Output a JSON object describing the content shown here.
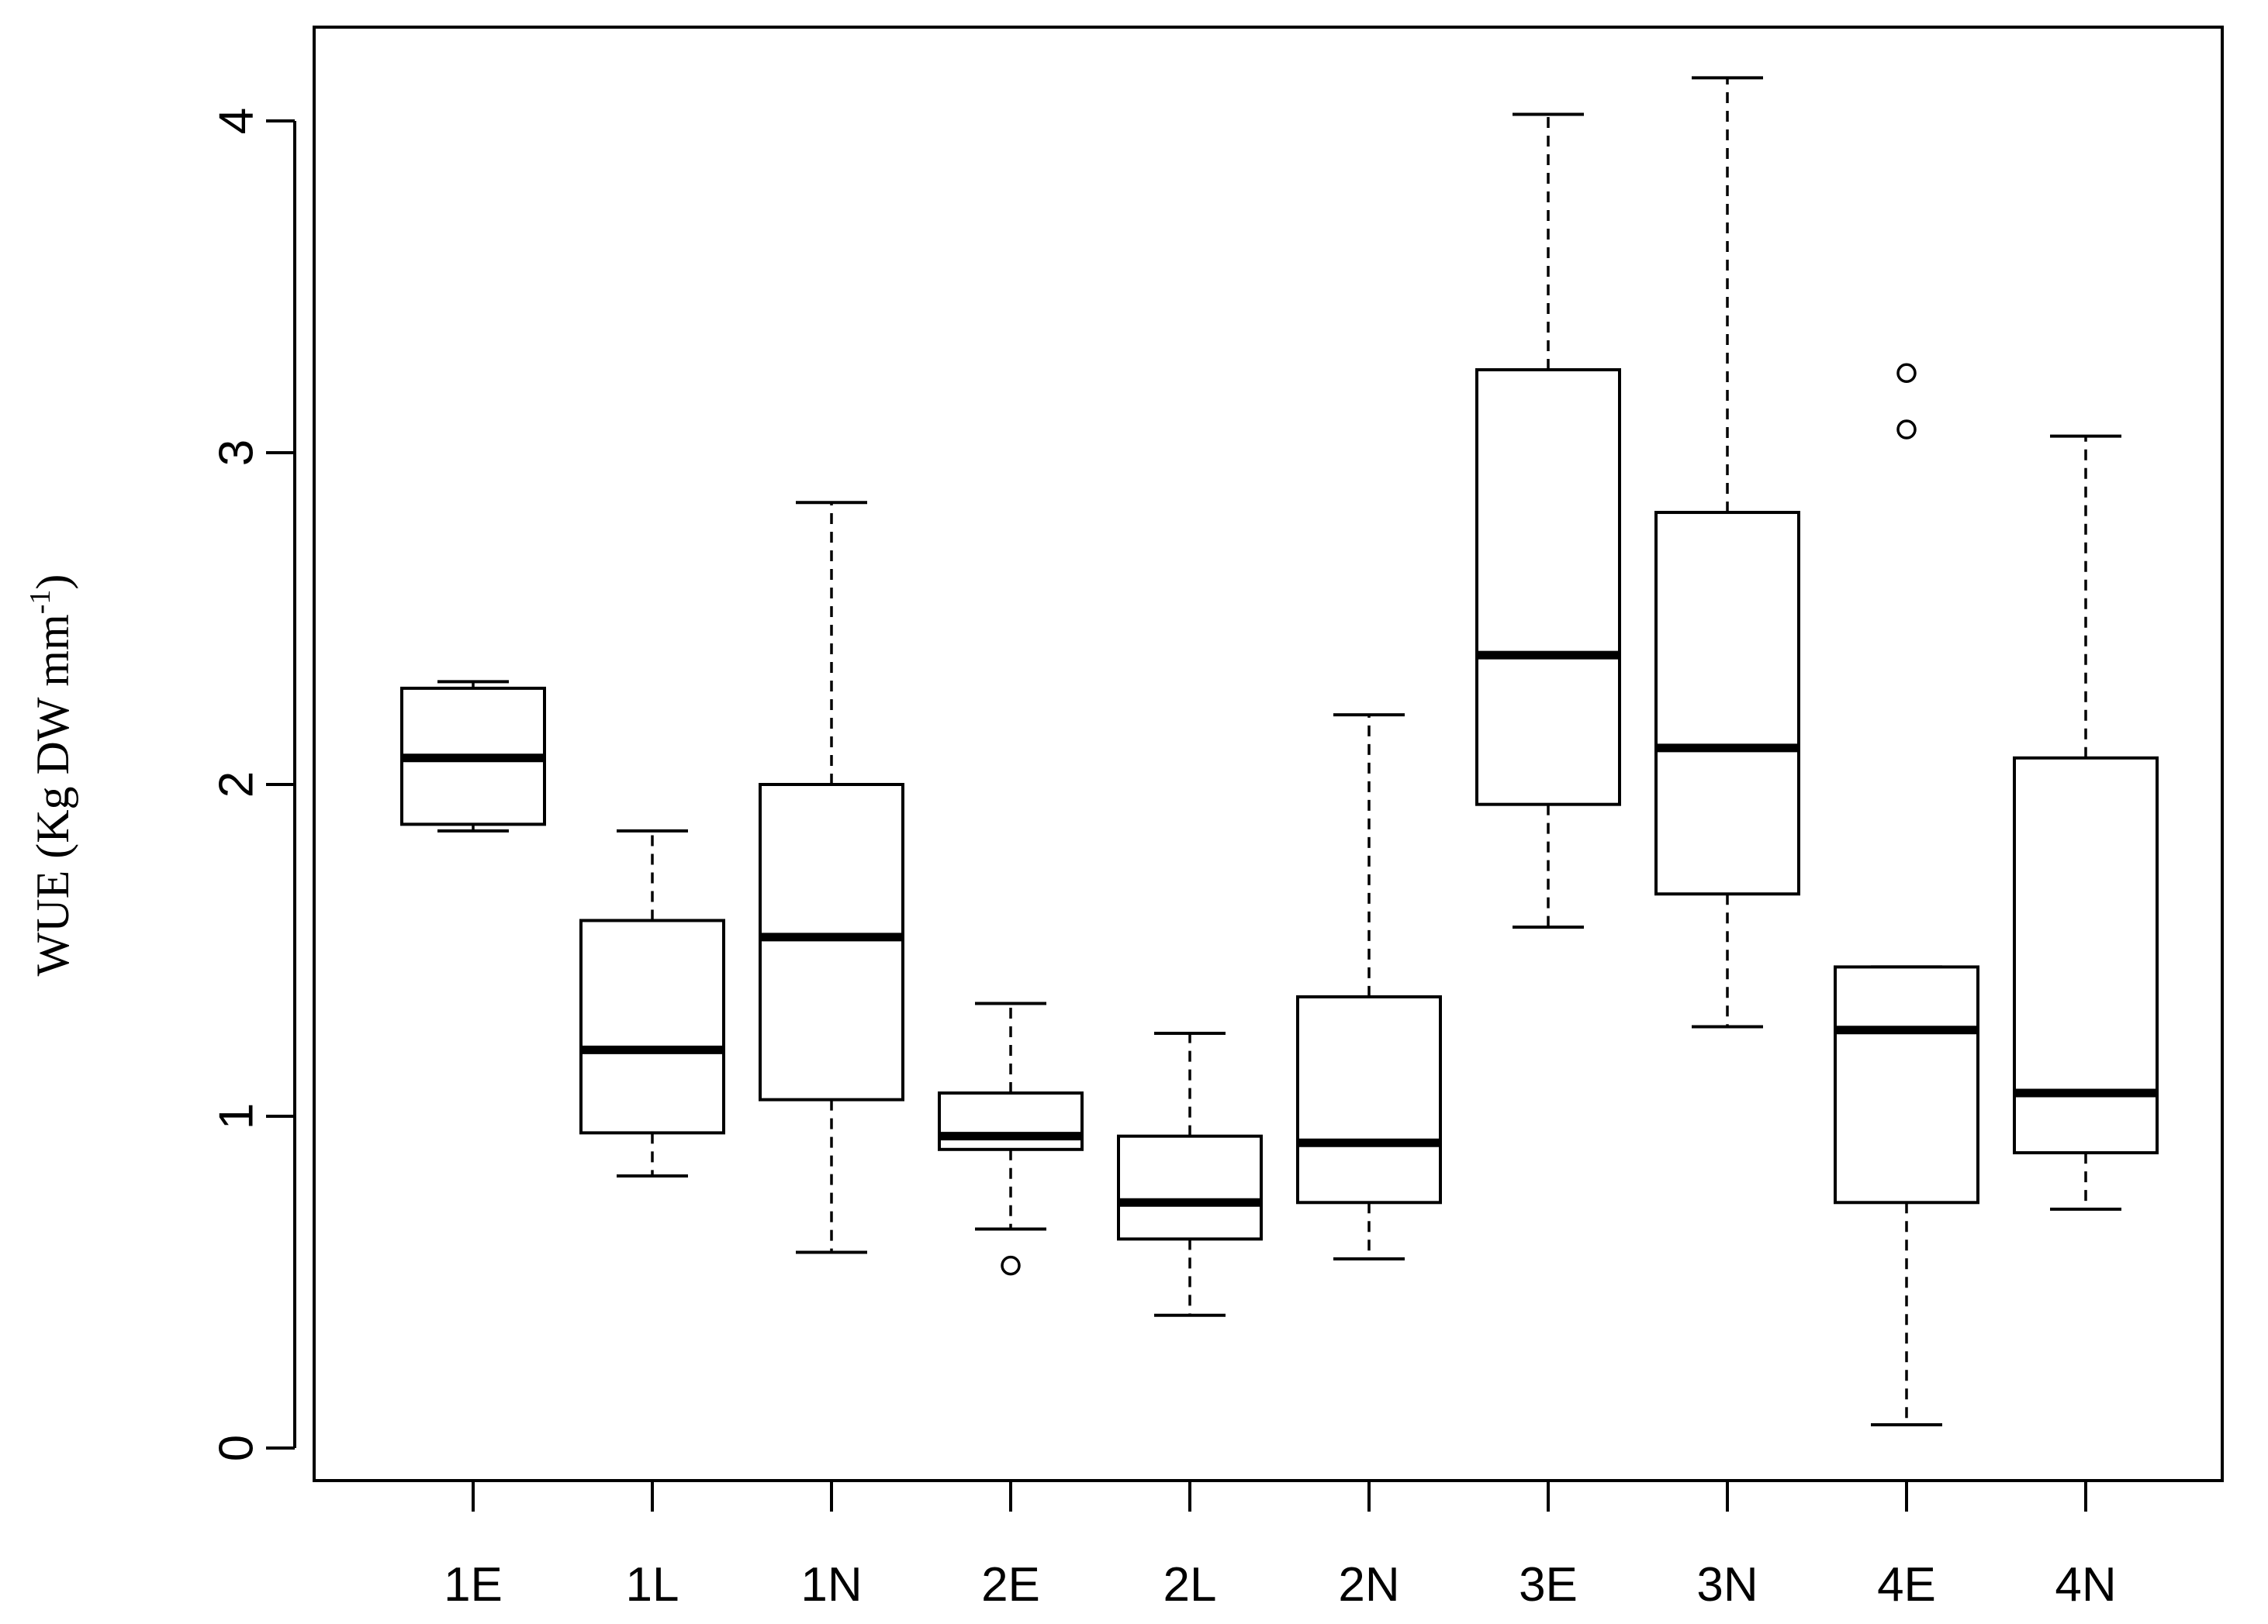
{
  "chart_data": {
    "type": "boxplot",
    "ylabel": "WUE (Kg DW mm",
    "ylabel_sup": "-1",
    "ylim": [
      0,
      4.3
    ],
    "yticks": [
      0,
      1,
      2,
      3,
      4
    ],
    "ytick_labels": [
      "0",
      "1",
      "2",
      "3",
      "4"
    ],
    "grid": false,
    "categories": [
      "1E",
      "1L",
      "1N",
      "2E",
      "2L",
      "2N",
      "3E",
      "3N",
      "4E",
      "4N"
    ],
    "boxes": [
      {
        "label": "1E",
        "whisker_low": 1.86,
        "q1": 1.88,
        "median": 2.08,
        "q3": 2.29,
        "whisker_high": 2.31,
        "outliers": []
      },
      {
        "label": "1L",
        "whisker_low": 0.82,
        "q1": 0.95,
        "median": 1.2,
        "q3": 1.59,
        "whisker_high": 1.86,
        "outliers": []
      },
      {
        "label": "1N",
        "whisker_low": 0.59,
        "q1": 1.05,
        "median": 1.54,
        "q3": 2.0,
        "whisker_high": 2.85,
        "outliers": []
      },
      {
        "label": "2E",
        "whisker_low": 0.66,
        "q1": 0.9,
        "median": 0.94,
        "q3": 1.07,
        "whisker_high": 1.34,
        "outliers": [
          0.55
        ]
      },
      {
        "label": "2L",
        "whisker_low": 0.4,
        "q1": 0.63,
        "median": 0.74,
        "q3": 0.94,
        "whisker_high": 1.25,
        "outliers": []
      },
      {
        "label": "2N",
        "whisker_low": 0.57,
        "q1": 0.74,
        "median": 0.92,
        "q3": 1.36,
        "whisker_high": 2.21,
        "outliers": []
      },
      {
        "label": "3E",
        "whisker_low": 1.57,
        "q1": 1.94,
        "median": 2.39,
        "q3": 3.25,
        "whisker_high": 4.02,
        "outliers": []
      },
      {
        "label": "3N",
        "whisker_low": 1.27,
        "q1": 1.67,
        "median": 2.11,
        "q3": 2.82,
        "whisker_high": 4.13,
        "outliers": []
      },
      {
        "label": "4E",
        "whisker_low": 0.07,
        "q1": 0.74,
        "median": 1.26,
        "q3": 1.45,
        "whisker_high": 1.45,
        "outliers": [
          3.07,
          3.24
        ]
      },
      {
        "label": "4N",
        "whisker_low": 0.72,
        "q1": 0.89,
        "median": 1.07,
        "q3": 2.08,
        "whisker_high": 3.05,
        "outliers": []
      }
    ],
    "colors": {
      "stroke": "#000000",
      "fill": "#ffffff",
      "background": "#ffffff"
    }
  }
}
